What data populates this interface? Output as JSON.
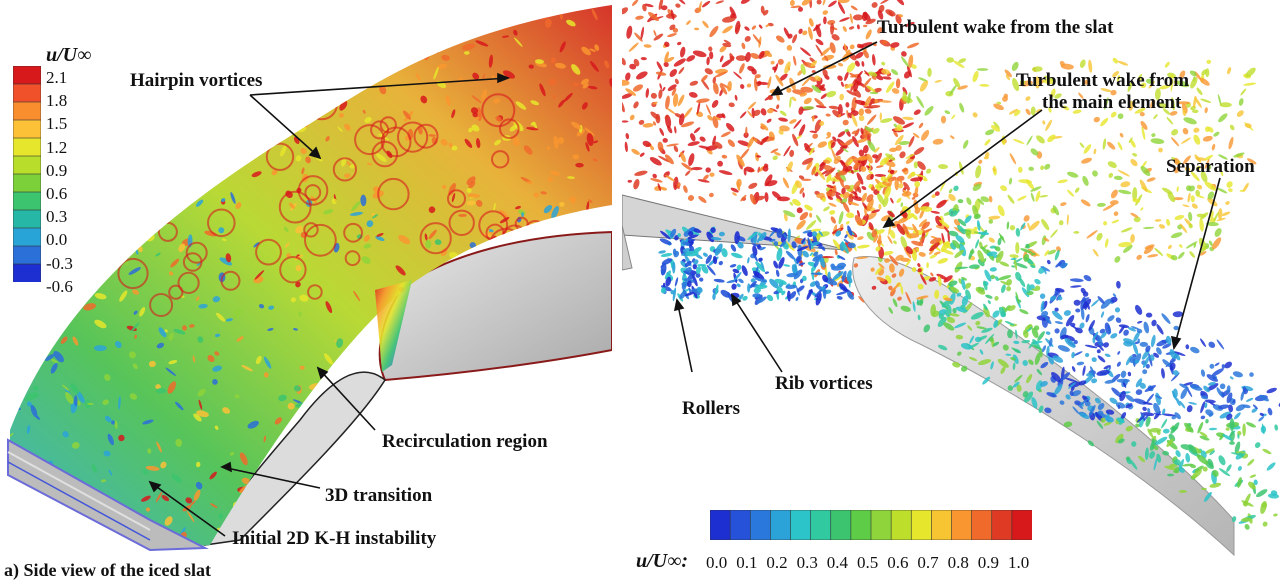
{
  "panel_a": {
    "caption": "a) Side view of the iced slat",
    "colorbar": {
      "title": "u/U∞",
      "ticks": [
        "2.1",
        "1.8",
        "1.5",
        "1.2",
        "0.9",
        "0.6",
        "0.3",
        "0.0",
        "-0.3",
        "-0.6"
      ],
      "colors": [
        "#d7191c",
        "#f0502a",
        "#f98e2e",
        "#fdc137",
        "#e6e62c",
        "#b8dd2a",
        "#7cd13a",
        "#3cc46e",
        "#27b7a6",
        "#29a4d6",
        "#2b6fd9",
        "#1d2fd0"
      ]
    },
    "annotations": {
      "hairpin": "Hairpin vortices",
      "recirculation": "Recirculation region",
      "transition": "3D transition",
      "kh": "Initial 2D K-H instability"
    }
  },
  "panel_b": {
    "colorbar": {
      "label": "u/U∞:",
      "ticks": [
        "0.0",
        "0.1",
        "0.2",
        "0.3",
        "0.4",
        "0.5",
        "0.6",
        "0.7",
        "0.8",
        "0.9",
        "1.0"
      ],
      "colors": [
        "#1d2fd0",
        "#2552d8",
        "#2b78dc",
        "#2ca3d8",
        "#2cc4c8",
        "#31c9a0",
        "#3cc46e",
        "#5fcc47",
        "#8fd43a",
        "#bede2c",
        "#e6e62c",
        "#f7c432",
        "#f9962f",
        "#f06a2b",
        "#de3a24",
        "#d7191c"
      ]
    },
    "annotations": {
      "slat_wake": "Turbulent wake from the slat",
      "main_wake_1": "Turbulent wake from",
      "main_wake_2": "the main element",
      "separation": "Separation",
      "rollers": "Rollers",
      "rib": "Rib vortices"
    }
  }
}
